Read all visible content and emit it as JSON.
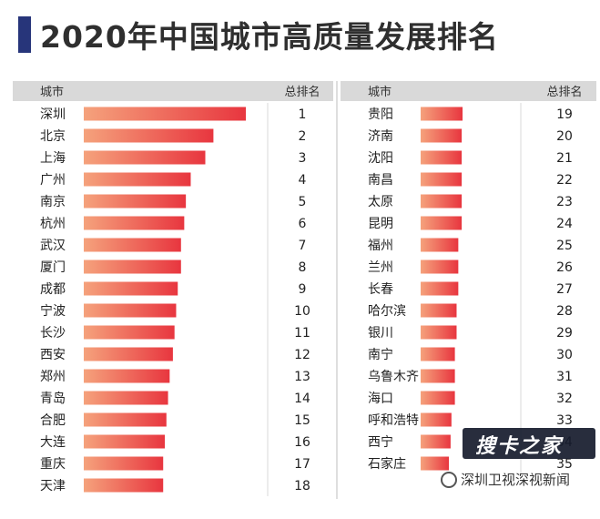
{
  "title": "2020年中国城市高质量发展排名",
  "watermark": {
    "text": "搜卡之家",
    "source": "深圳卫视深视新闻"
  },
  "colors": {
    "title_accent": "#27357a",
    "bar_start": "#f5a27c",
    "bar_end": "#e8363f",
    "header_band": "#d9d9d9"
  },
  "chart_data": {
    "type": "bar",
    "orientation": "horizontal",
    "headers": {
      "city": "城市",
      "rank": "总排名"
    },
    "panels": [
      {
        "categories": [
          "深圳",
          "北京",
          "上海",
          "广州",
          "南京",
          "杭州",
          "武汉",
          "厦门",
          "成都",
          "宁波",
          "长沙",
          "西安",
          "郑州",
          "青岛",
          "合肥",
          "大连",
          "重庆",
          "天津"
        ],
        "ranks": [
          1,
          2,
          3,
          4,
          5,
          6,
          7,
          8,
          9,
          10,
          11,
          12,
          13,
          14,
          15,
          16,
          17,
          18
        ],
        "values": [
          100,
          80,
          75,
          66,
          63,
          62,
          60,
          60,
          58,
          57,
          56,
          55,
          53,
          52,
          51,
          50,
          49,
          49
        ]
      },
      {
        "categories": [
          "贵阳",
          "济南",
          "沈阳",
          "南昌",
          "太原",
          "昆明",
          "福州",
          "兰州",
          "长春",
          "哈尔滨",
          "银川",
          "南宁",
          "乌鲁木齐",
          "海口",
          "呼和浩特",
          "西宁",
          "石家庄"
        ],
        "ranks": [
          19,
          20,
          21,
          22,
          23,
          24,
          25,
          26,
          27,
          28,
          29,
          30,
          31,
          32,
          33,
          34,
          35
        ],
        "values": [
          49,
          48,
          48,
          48,
          48,
          48,
          44,
          44,
          44,
          42,
          42,
          40,
          40,
          40,
          36,
          35,
          33
        ]
      }
    ],
    "xlim": [
      0,
      100
    ],
    "grid": false,
    "legend": "none"
  }
}
